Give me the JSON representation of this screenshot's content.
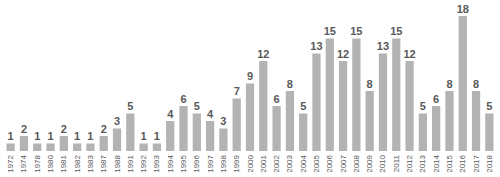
{
  "chart_data": {
    "type": "bar",
    "categories": [
      "1972",
      "1974",
      "1978",
      "1980",
      "1981",
      "1982",
      "1983",
      "1987",
      "1988",
      "1991",
      "1992",
      "1993",
      "1994",
      "1995",
      "1996",
      "1997",
      "1998",
      "1999",
      "2000",
      "2001",
      "2002",
      "2003",
      "2004",
      "2005",
      "2006",
      "2007",
      "2008",
      "2009",
      "2010",
      "2011",
      "2012",
      "2013",
      "2014",
      "2015",
      "2016",
      "2017",
      "2018"
    ],
    "values": [
      1,
      2,
      1,
      1,
      2,
      1,
      1,
      2,
      3,
      5,
      1,
      1,
      4,
      6,
      5,
      4,
      3,
      7,
      9,
      12,
      6,
      8,
      5,
      13,
      15,
      12,
      15,
      8,
      13,
      15,
      12,
      5,
      6,
      8,
      18,
      8,
      5
    ],
    "color": "#b3b3b3",
    "ylim": [
      0,
      18
    ],
    "grid": false,
    "data_labels": true,
    "tick_labels": "x"
  }
}
